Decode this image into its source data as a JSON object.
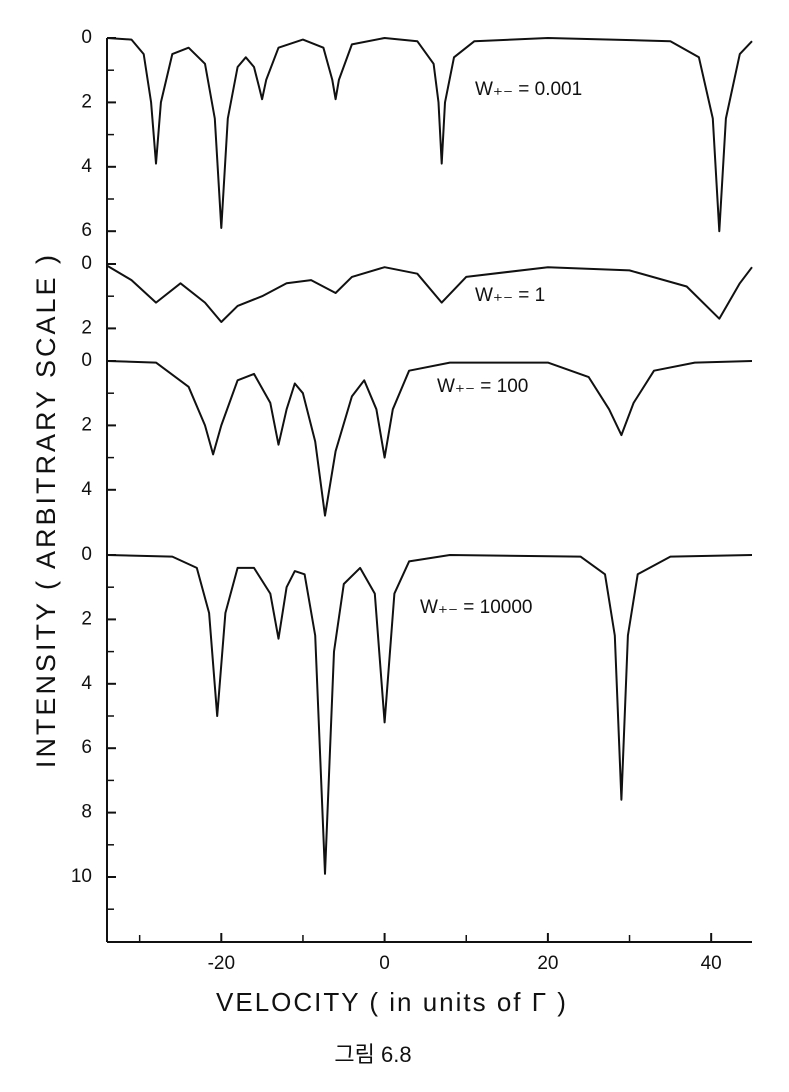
{
  "ylabel": "INTENSITY ( ARBITRARY SCALE )",
  "caption": "그림 6.8",
  "chart_data": [
    {
      "type": "line",
      "annotation": "W₊₋ = 0.001",
      "color": "#111111",
      "xlim": [
        -34,
        45
      ],
      "ylim": [
        0,
        6.5
      ],
      "yticks": [
        0,
        2,
        4,
        6
      ],
      "yminor": [
        1,
        3,
        5
      ],
      "x": [
        -34,
        -31,
        -29.5,
        -28.6,
        -28,
        -27.4,
        -26,
        -24,
        -22,
        -20.8,
        -20,
        -19.2,
        -18,
        -17,
        -16,
        -15.4,
        -15,
        -14.5,
        -13,
        -10,
        -7.5,
        -6.4,
        -6,
        -5.6,
        -4,
        0,
        4,
        6,
        6.6,
        7,
        7.4,
        8.5,
        11,
        20,
        35,
        38.5,
        40.2,
        41,
        41.8,
        43.5,
        45
      ],
      "values": [
        0,
        0.05,
        0.5,
        2,
        3.9,
        2,
        0.5,
        0.3,
        0.8,
        2.5,
        5.9,
        2.5,
        0.9,
        0.6,
        0.9,
        1.5,
        1.9,
        1.3,
        0.3,
        0.05,
        0.3,
        1.3,
        1.9,
        1.3,
        0.2,
        0,
        0.1,
        0.8,
        2,
        3.9,
        2,
        0.6,
        0.1,
        0,
        0.1,
        0.6,
        2.5,
        6,
        2.5,
        0.5,
        0.1
      ]
    },
    {
      "type": "line",
      "annotation": "W₊₋ =  1",
      "color": "#111111",
      "xlim": [
        -34,
        45
      ],
      "ylim": [
        0,
        2.2
      ],
      "yticks": [
        0,
        2
      ],
      "yminor": [
        1
      ],
      "x": [
        -34,
        -31,
        -28,
        -25,
        -22,
        -20,
        -18,
        -15,
        -12,
        -9,
        -6,
        -4,
        0,
        4,
        7,
        10,
        20,
        30,
        37,
        41,
        43.5,
        45
      ],
      "values": [
        0.05,
        0.5,
        1.2,
        0.6,
        1.2,
        1.8,
        1.3,
        1,
        0.6,
        0.5,
        0.9,
        0.4,
        0.1,
        0.3,
        1.2,
        0.4,
        0.1,
        0.2,
        0.7,
        1.7,
        0.6,
        0.1
      ]
    },
    {
      "type": "line",
      "annotation": "W₊₋ = 100",
      "color": "#111111",
      "xlim": [
        -34,
        45
      ],
      "ylim": [
        0,
        5
      ],
      "yticks": [
        0,
        2,
        4
      ],
      "yminor": [
        1,
        3
      ],
      "x": [
        -34,
        -28,
        -24,
        -22,
        -21,
        -20,
        -18,
        -16,
        -14,
        -13,
        -12,
        -11,
        -10,
        -8.5,
        -7.3,
        -6,
        -4,
        -2.5,
        -1,
        0,
        1,
        3,
        8,
        20,
        25,
        27.5,
        29,
        30.5,
        33,
        38,
        45
      ],
      "values": [
        0,
        0.05,
        0.8,
        2,
        2.9,
        2,
        0.6,
        0.4,
        1.3,
        2.6,
        1.5,
        0.7,
        1,
        2.5,
        4.8,
        2.8,
        1.1,
        0.6,
        1.5,
        3,
        1.5,
        0.3,
        0.05,
        0.05,
        0.5,
        1.5,
        2.3,
        1.3,
        0.3,
        0.05,
        0
      ]
    },
    {
      "type": "line",
      "annotation": "W₊₋ = 10000",
      "color": "#111111",
      "xlabel": "VELOCITY ( in units of Γ )",
      "xlim": [
        -34,
        45
      ],
      "xticks": [
        -20,
        0,
        20,
        40
      ],
      "xminor": [
        -30,
        -10,
        10,
        30
      ],
      "ylim": [
        0,
        12
      ],
      "yticks": [
        0,
        2,
        4,
        6,
        8,
        10
      ],
      "yminor": [
        1,
        3,
        5,
        7,
        9,
        11
      ],
      "x": [
        -34,
        -26,
        -23,
        -21.5,
        -20.5,
        -19.5,
        -18,
        -16,
        -14,
        -13,
        -12,
        -11,
        -9.8,
        -8.5,
        -7.3,
        -6.2,
        -5,
        -3,
        -1.2,
        0,
        1.2,
        3,
        8,
        24,
        27,
        28.2,
        29,
        29.8,
        31,
        35,
        45
      ],
      "values": [
        0,
        0.05,
        0.4,
        1.8,
        5,
        1.8,
        0.4,
        0.4,
        1.2,
        2.6,
        1,
        0.5,
        0.6,
        2.5,
        9.9,
        3,
        0.9,
        0.4,
        1.2,
        5.2,
        1.2,
        0.2,
        0,
        0.05,
        0.6,
        2.5,
        7.6,
        2.5,
        0.6,
        0.05,
        0
      ]
    }
  ]
}
